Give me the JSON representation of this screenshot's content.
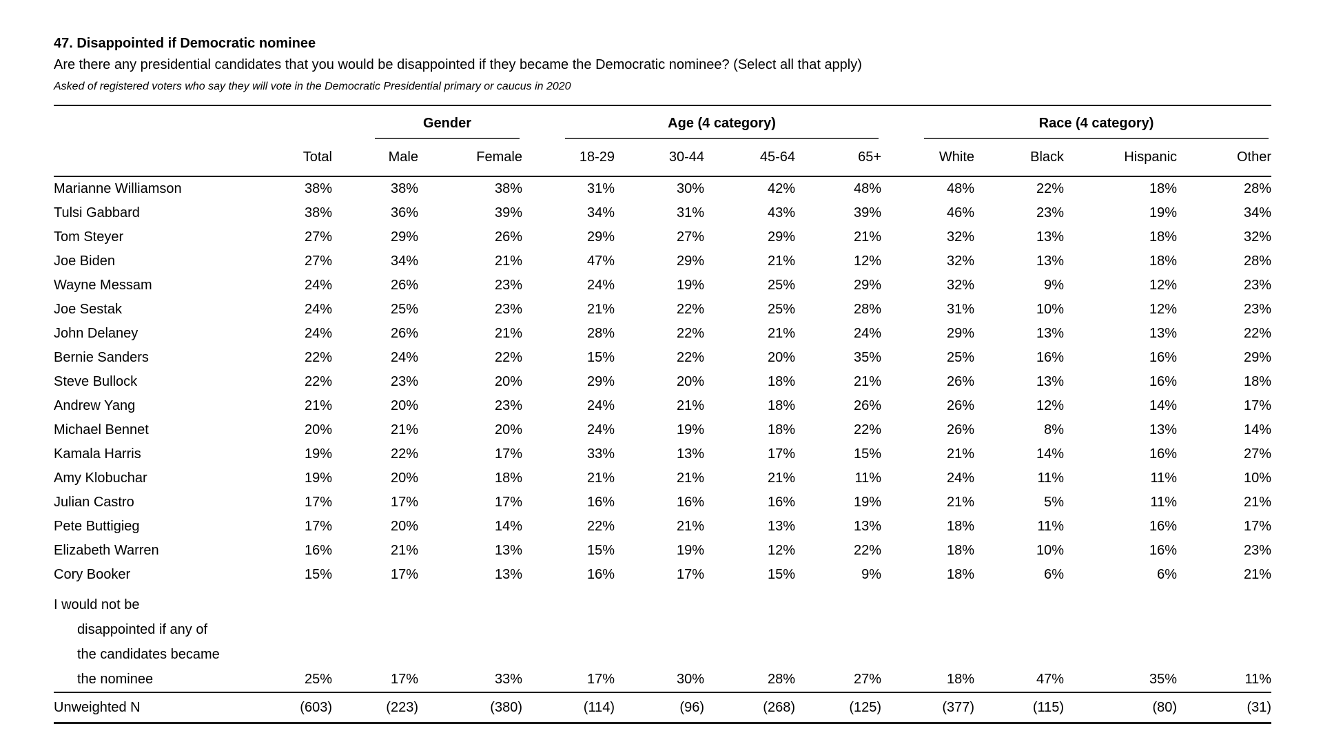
{
  "header": {
    "title": "47. Disappointed if Democratic nominee",
    "question": "Are there any presidential candidates that you would be disappointed if they became the Democratic nominee? (Select all that apply)",
    "note": "Asked of registered voters who say they will vote in the Democratic Presidential primary or caucus in 2020"
  },
  "table": {
    "groups": [
      {
        "label": "Gender",
        "span": 2
      },
      {
        "label": "Age (4 category)",
        "span": 4
      },
      {
        "label": "Race (4 category)",
        "span": 4
      }
    ],
    "columns": [
      "Total",
      "Male",
      "Female",
      "18-29",
      "30-44",
      "45-64",
      "65+",
      "White",
      "Black",
      "Hispanic",
      "Other"
    ],
    "rows": [
      {
        "label": "Marianne Williamson",
        "values": [
          "38%",
          "38%",
          "38%",
          "31%",
          "30%",
          "42%",
          "48%",
          "48%",
          "22%",
          "18%",
          "28%"
        ]
      },
      {
        "label": "Tulsi Gabbard",
        "values": [
          "38%",
          "36%",
          "39%",
          "34%",
          "31%",
          "43%",
          "39%",
          "46%",
          "23%",
          "19%",
          "34%"
        ]
      },
      {
        "label": "Tom Steyer",
        "values": [
          "27%",
          "29%",
          "26%",
          "29%",
          "27%",
          "29%",
          "21%",
          "32%",
          "13%",
          "18%",
          "32%"
        ]
      },
      {
        "label": "Joe Biden",
        "values": [
          "27%",
          "34%",
          "21%",
          "47%",
          "29%",
          "21%",
          "12%",
          "32%",
          "13%",
          "18%",
          "28%"
        ]
      },
      {
        "label": "Wayne Messam",
        "values": [
          "24%",
          "26%",
          "23%",
          "24%",
          "19%",
          "25%",
          "29%",
          "32%",
          "9%",
          "12%",
          "23%"
        ]
      },
      {
        "label": "Joe Sestak",
        "values": [
          "24%",
          "25%",
          "23%",
          "21%",
          "22%",
          "25%",
          "28%",
          "31%",
          "10%",
          "12%",
          "23%"
        ]
      },
      {
        "label": "John Delaney",
        "values": [
          "24%",
          "26%",
          "21%",
          "28%",
          "22%",
          "21%",
          "24%",
          "29%",
          "13%",
          "13%",
          "22%"
        ]
      },
      {
        "label": "Bernie Sanders",
        "values": [
          "22%",
          "24%",
          "22%",
          "15%",
          "22%",
          "20%",
          "35%",
          "25%",
          "16%",
          "16%",
          "29%"
        ]
      },
      {
        "label": "Steve Bullock",
        "values": [
          "22%",
          "23%",
          "20%",
          "29%",
          "20%",
          "18%",
          "21%",
          "26%",
          "13%",
          "16%",
          "18%"
        ]
      },
      {
        "label": "Andrew Yang",
        "values": [
          "21%",
          "20%",
          "23%",
          "24%",
          "21%",
          "18%",
          "26%",
          "26%",
          "12%",
          "14%",
          "17%"
        ]
      },
      {
        "label": "Michael Bennet",
        "values": [
          "20%",
          "21%",
          "20%",
          "24%",
          "19%",
          "18%",
          "22%",
          "26%",
          "8%",
          "13%",
          "14%"
        ]
      },
      {
        "label": "Kamala Harris",
        "values": [
          "19%",
          "22%",
          "17%",
          "33%",
          "13%",
          "17%",
          "15%",
          "21%",
          "14%",
          "16%",
          "27%"
        ]
      },
      {
        "label": "Amy Klobuchar",
        "values": [
          "19%",
          "20%",
          "18%",
          "21%",
          "21%",
          "21%",
          "11%",
          "24%",
          "11%",
          "11%",
          "10%"
        ]
      },
      {
        "label": "Julian Castro",
        "values": [
          "17%",
          "17%",
          "17%",
          "16%",
          "16%",
          "16%",
          "19%",
          "21%",
          "5%",
          "11%",
          "21%"
        ]
      },
      {
        "label": "Pete Buttigieg",
        "values": [
          "17%",
          "20%",
          "14%",
          "22%",
          "21%",
          "13%",
          "13%",
          "18%",
          "11%",
          "16%",
          "17%"
        ]
      },
      {
        "label": "Elizabeth Warren",
        "values": [
          "16%",
          "21%",
          "13%",
          "15%",
          "19%",
          "12%",
          "22%",
          "18%",
          "10%",
          "16%",
          "23%"
        ]
      },
      {
        "label": "Cory Booker",
        "values": [
          "15%",
          "17%",
          "13%",
          "16%",
          "17%",
          "15%",
          "9%",
          "18%",
          "6%",
          "6%",
          "21%"
        ]
      },
      {
        "label_lines": [
          "I would not be",
          "disappointed if any of",
          "the candidates became",
          "the nominee"
        ],
        "values": [
          "25%",
          "17%",
          "33%",
          "17%",
          "30%",
          "28%",
          "27%",
          "18%",
          "47%",
          "35%",
          "11%"
        ]
      }
    ],
    "footer": {
      "label": "Unweighted N",
      "values": [
        "(603)",
        "(223)",
        "(380)",
        "(114)",
        "(96)",
        "(268)",
        "(125)",
        "(377)",
        "(115)",
        "(80)",
        "(31)"
      ]
    }
  }
}
